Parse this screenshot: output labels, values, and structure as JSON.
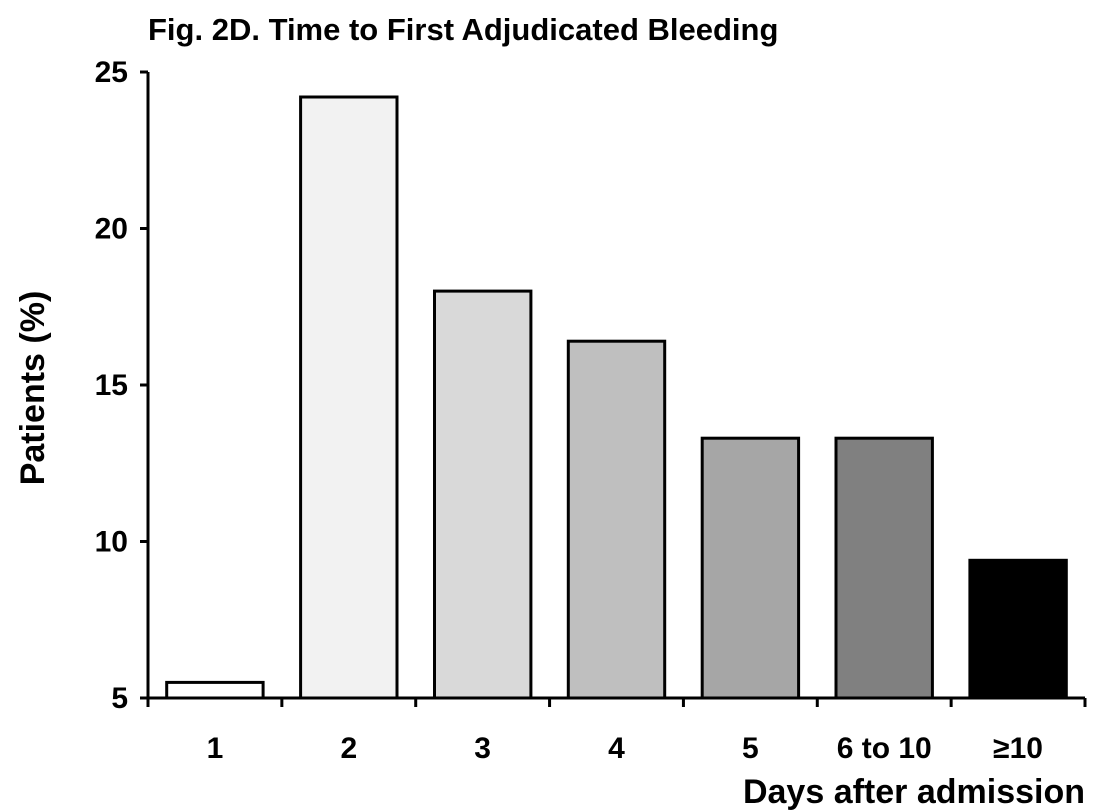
{
  "chart_data": {
    "type": "bar",
    "title": "Fig. 2D. Time to First Adjudicated Bleeding",
    "xlabel": "Days after admission",
    "ylabel": "Patients (%)",
    "categories": [
      "1",
      "2",
      "3",
      "4",
      "5",
      "6 to 10",
      "≥10"
    ],
    "values": [
      5.5,
      24.2,
      18.0,
      16.4,
      13.3,
      13.3,
      9.4
    ],
    "bar_colors": [
      "#ffffff",
      "#f2f2f2",
      "#d9d9d9",
      "#bfbfbf",
      "#a6a6a6",
      "#808080",
      "#000000"
    ],
    "ylim": [
      5,
      25
    ],
    "yticks": [
      5,
      10,
      15,
      20,
      25
    ],
    "grid": false,
    "legend": "none"
  }
}
